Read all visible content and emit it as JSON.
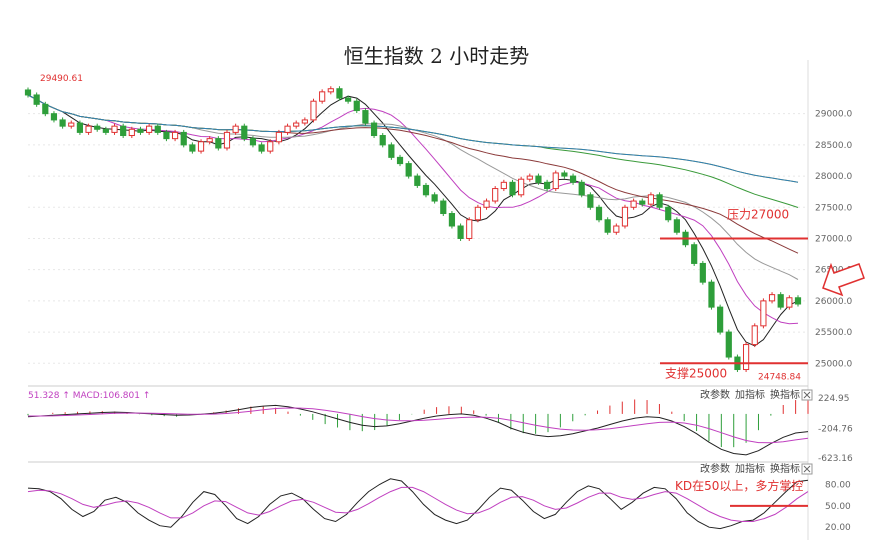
{
  "title": "恒生指数 2 小时走势",
  "colors": {
    "up": "#e03131",
    "down": "#2e9e3a",
    "ma_purple": "#c040c0",
    "ma_black": "#222222",
    "ma_gray": "#999999",
    "ma_brown": "#8b3a3a",
    "ma_green": "#3a9a3a",
    "ma_gold": "#d4a017",
    "ma_blue": "#2a7fb8",
    "annotation": "#e03131"
  },
  "chart_data": [
    {
      "type": "candlestick",
      "panel": "price",
      "ylim": [
        24700,
        29700
      ],
      "y_ticks": [
        "29000.0",
        "28500.0",
        "28000.0",
        "27500.0",
        "27000.0",
        "26500.0",
        "26000.0",
        "25500.0",
        "25000.0"
      ],
      "y_tick_values": [
        29000,
        28500,
        28000,
        27500,
        27000,
        26500,
        26000,
        25500,
        25000
      ],
      "top_left_label": "29490.61",
      "low_label": "24748.84",
      "levels": [
        {
          "label": "压力27000",
          "value": 27000
        },
        {
          "label": "支撑25000",
          "value": 25000
        }
      ],
      "close": [
        29300,
        29150,
        29000,
        28900,
        28800,
        28850,
        28700,
        28800,
        28750,
        28700,
        28800,
        28650,
        28750,
        28700,
        28800,
        28700,
        28600,
        28700,
        28500,
        28400,
        28550,
        28600,
        28450,
        28700,
        28800,
        28600,
        28500,
        28400,
        28550,
        28700,
        28800,
        28850,
        28900,
        29200,
        29350,
        29400,
        29250,
        29200,
        29050,
        28850,
        28650,
        28500,
        28300,
        28200,
        28000,
        27850,
        27700,
        27600,
        27400,
        27200,
        27000,
        27300,
        27500,
        27600,
        27800,
        27900,
        27700,
        27950,
        28000,
        27900,
        27800,
        28050,
        28000,
        27900,
        27700,
        27500,
        27300,
        27100,
        27200,
        27500,
        27600,
        27550,
        27700,
        27500,
        27300,
        27100,
        26900,
        26600,
        26300,
        25900,
        25500,
        25100,
        24900,
        25300,
        25600,
        26000,
        26100,
        25900,
        26050,
        25950
      ]
    },
    {
      "type": "macd",
      "panel": "macd",
      "label": "51.328 ↑ MACD:106.801 ↑",
      "y_ticks": [
        "224.95",
        "-204.76",
        "-623.16"
      ],
      "y_tick_values": [
        224.95,
        -204.76,
        -623.16
      ],
      "controls": [
        "改参数",
        "加指标",
        "换指标"
      ],
      "dif": [
        -40,
        -30,
        -20,
        -10,
        0,
        10,
        20,
        25,
        20,
        10,
        0,
        -10,
        -20,
        -15,
        -5,
        10,
        30,
        60,
        90,
        110,
        120,
        100,
        70,
        30,
        -20,
        -70,
        -120,
        -160,
        -180,
        -170,
        -140,
        -100,
        -60,
        -30,
        -10,
        0,
        -20,
        -60,
        -120,
        -200,
        -260,
        -300,
        -320,
        -310,
        -280,
        -240,
        -200,
        -150,
        -100,
        -60,
        -40,
        -50,
        -100,
        -180,
        -280,
        -400,
        -500,
        -560,
        -580,
        -520,
        -420,
        -330,
        -270,
        -250
      ],
      "dea": [
        -30,
        -30,
        -28,
        -22,
        -15,
        -8,
        0,
        8,
        12,
        12,
        10,
        6,
        0,
        -4,
        -5,
        -2,
        6,
        20,
        38,
        58,
        76,
        84,
        82,
        72,
        52,
        26,
        -5,
        -38,
        -66,
        -86,
        -96,
        -97,
        -90,
        -78,
        -64,
        -51,
        -45,
        -48,
        -62,
        -90,
        -124,
        -159,
        -191,
        -215,
        -228,
        -230,
        -224,
        -209,
        -187,
        -162,
        -138,
        -120,
        -116,
        -129,
        -159,
        -207,
        -266,
        -325,
        -376,
        -405,
        -408,
        -393,
        -368,
        -344
      ]
    },
    {
      "type": "kd",
      "panel": "kd",
      "y_ticks": [
        "80.00",
        "50.00",
        "20.00"
      ],
      "y_tick_values": [
        80,
        50,
        20
      ],
      "controls": [
        "改参数",
        "加指标",
        "换指标"
      ],
      "annotation": "KD在50以上，多方掌控",
      "k": [
        75,
        74,
        70,
        60,
        45,
        35,
        42,
        58,
        62,
        55,
        40,
        30,
        22,
        20,
        35,
        55,
        70,
        66,
        50,
        32,
        25,
        35,
        52,
        64,
        68,
        60,
        45,
        32,
        28,
        38,
        55,
        70,
        80,
        88,
        85,
        70,
        52,
        38,
        30,
        25,
        30,
        45,
        62,
        75,
        72,
        58,
        42,
        32,
        38,
        55,
        70,
        78,
        74,
        60,
        45,
        55,
        68,
        76,
        74,
        60,
        40,
        28,
        20,
        18,
        22,
        28,
        30,
        40,
        55,
        70,
        84,
        86
      ],
      "d": [
        70,
        72,
        71,
        67,
        60,
        52,
        48,
        51,
        55,
        57,
        54,
        48,
        40,
        33,
        33,
        40,
        50,
        57,
        56,
        48,
        40,
        37,
        42,
        50,
        57,
        59,
        55,
        48,
        41,
        40,
        45,
        53,
        62,
        70,
        76,
        76,
        70,
        61,
        52,
        44,
        39,
        40,
        46,
        55,
        62,
        63,
        58,
        50,
        45,
        47,
        54,
        62,
        68,
        68,
        62,
        59,
        61,
        66,
        70,
        68,
        60,
        51,
        42,
        35,
        30,
        28,
        28,
        32,
        38,
        48,
        60,
        70
      ]
    }
  ]
}
